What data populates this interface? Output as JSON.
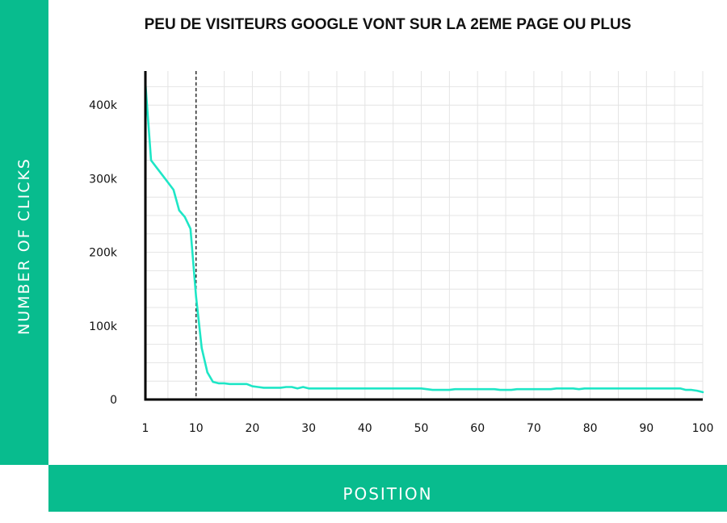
{
  "chart_data": {
    "type": "line",
    "title": "PEU DE VISITEURS GOOGLE VONT SUR LA 2EME PAGE OU PLUS",
    "xlabel": "POSITION",
    "ylabel": "NUMBER OF CLICKS",
    "xlim": [
      1,
      100
    ],
    "ylim": [
      0,
      430000
    ],
    "x_ticks": [
      1,
      10,
      20,
      30,
      40,
      50,
      60,
      70,
      80,
      90,
      100
    ],
    "y_ticks": [
      0,
      100000,
      200000,
      300000,
      400000
    ],
    "y_tick_labels": [
      "0",
      "100k",
      "200k",
      "300k",
      "400k"
    ],
    "grid": true,
    "reference_line": {
      "x": 10,
      "style": "dashed"
    },
    "series": [
      {
        "color": "#1ee6c6",
        "x": [
          1,
          2,
          3,
          4,
          5,
          6,
          7,
          8,
          9,
          10,
          11,
          12,
          13,
          14,
          15,
          16,
          17,
          18,
          19,
          20,
          21,
          22,
          23,
          24,
          25,
          26,
          27,
          28,
          29,
          30,
          35,
          40,
          45,
          50,
          51,
          52,
          55,
          56,
          60,
          63,
          64,
          65,
          66,
          67,
          70,
          73,
          74,
          77,
          78,
          79,
          80,
          85,
          90,
          95,
          96,
          97,
          98,
          99,
          100
        ],
        "y": [
          430000,
          325000,
          315000,
          305000,
          295000,
          285000,
          257000,
          248000,
          232000,
          140000,
          70000,
          37000,
          24000,
          22000,
          22000,
          21000,
          21000,
          21000,
          21000,
          18000,
          17000,
          16000,
          16000,
          16000,
          16000,
          17000,
          17000,
          15000,
          17000,
          15000,
          15000,
          15000,
          15000,
          15000,
          14000,
          13000,
          13000,
          14000,
          14000,
          14000,
          13000,
          13000,
          13000,
          14000,
          14000,
          14000,
          15000,
          15000,
          14000,
          15000,
          15000,
          15000,
          15000,
          15000,
          15000,
          13000,
          13000,
          12000,
          10000
        ]
      }
    ]
  },
  "colors": {
    "band": "#08bc8e",
    "line": "#1ee6c6",
    "grid": "#e4e4e4",
    "axis": "#000000"
  }
}
